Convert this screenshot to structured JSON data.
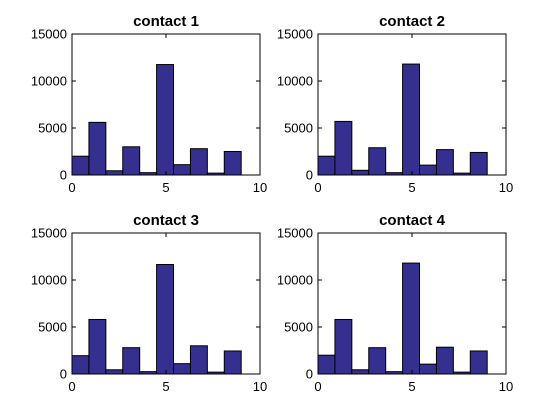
{
  "chart_data": [
    {
      "type": "bar",
      "title": "contact 1",
      "xlabel": "",
      "ylabel": "",
      "xlim": [
        0,
        10
      ],
      "ylim": [
        0,
        15000
      ],
      "xticks": [
        "0",
        "5",
        "10"
      ],
      "yticks": [
        "0",
        "5000",
        "10000",
        "15000"
      ],
      "bin_edges": [
        0,
        0.9,
        1.8,
        2.7,
        3.6,
        4.5,
        5.4,
        6.3,
        7.2,
        8.1,
        9.0
      ],
      "values": [
        2000,
        5600,
        450,
        3000,
        250,
        11750,
        1100,
        2800,
        200,
        2500
      ],
      "bar_color": "#35308f",
      "grid": false,
      "legend": "none"
    },
    {
      "type": "bar",
      "title": "contact 2",
      "xlabel": "",
      "ylabel": "",
      "xlim": [
        0,
        10
      ],
      "ylim": [
        0,
        15000
      ],
      "xticks": [
        "0",
        "5",
        "10"
      ],
      "yticks": [
        "0",
        "5000",
        "10000",
        "15000"
      ],
      "bin_edges": [
        0,
        0.9,
        1.8,
        2.7,
        3.6,
        4.5,
        5.4,
        6.3,
        7.2,
        8.1,
        9.0
      ],
      "values": [
        2000,
        5700,
        500,
        2900,
        250,
        11800,
        1050,
        2700,
        200,
        2400
      ],
      "bar_color": "#35308f",
      "grid": false,
      "legend": "none"
    },
    {
      "type": "bar",
      "title": "contact 3",
      "xlabel": "",
      "ylabel": "",
      "xlim": [
        0,
        10
      ],
      "ylim": [
        0,
        15000
      ],
      "xticks": [
        "0",
        "5",
        "10"
      ],
      "yticks": [
        "0",
        "5000",
        "10000",
        "15000"
      ],
      "bin_edges": [
        0,
        0.9,
        1.8,
        2.7,
        3.6,
        4.5,
        5.4,
        6.3,
        7.2,
        8.1,
        9.0
      ],
      "values": [
        1950,
        5800,
        450,
        2800,
        250,
        11650,
        1100,
        3000,
        200,
        2450
      ],
      "bar_color": "#35308f",
      "grid": false,
      "legend": "none"
    },
    {
      "type": "bar",
      "title": "contact 4",
      "xlabel": "",
      "ylabel": "",
      "xlim": [
        0,
        10
      ],
      "ylim": [
        0,
        15000
      ],
      "xticks": [
        "0",
        "5",
        "10"
      ],
      "yticks": [
        "0",
        "5000",
        "10000",
        "15000"
      ],
      "bin_edges": [
        0,
        0.9,
        1.8,
        2.7,
        3.6,
        4.5,
        5.4,
        6.3,
        7.2,
        8.1,
        9.0
      ],
      "values": [
        2000,
        5800,
        450,
        2800,
        250,
        11800,
        1050,
        2850,
        200,
        2450
      ],
      "bar_color": "#35308f",
      "grid": false,
      "legend": "none"
    }
  ]
}
